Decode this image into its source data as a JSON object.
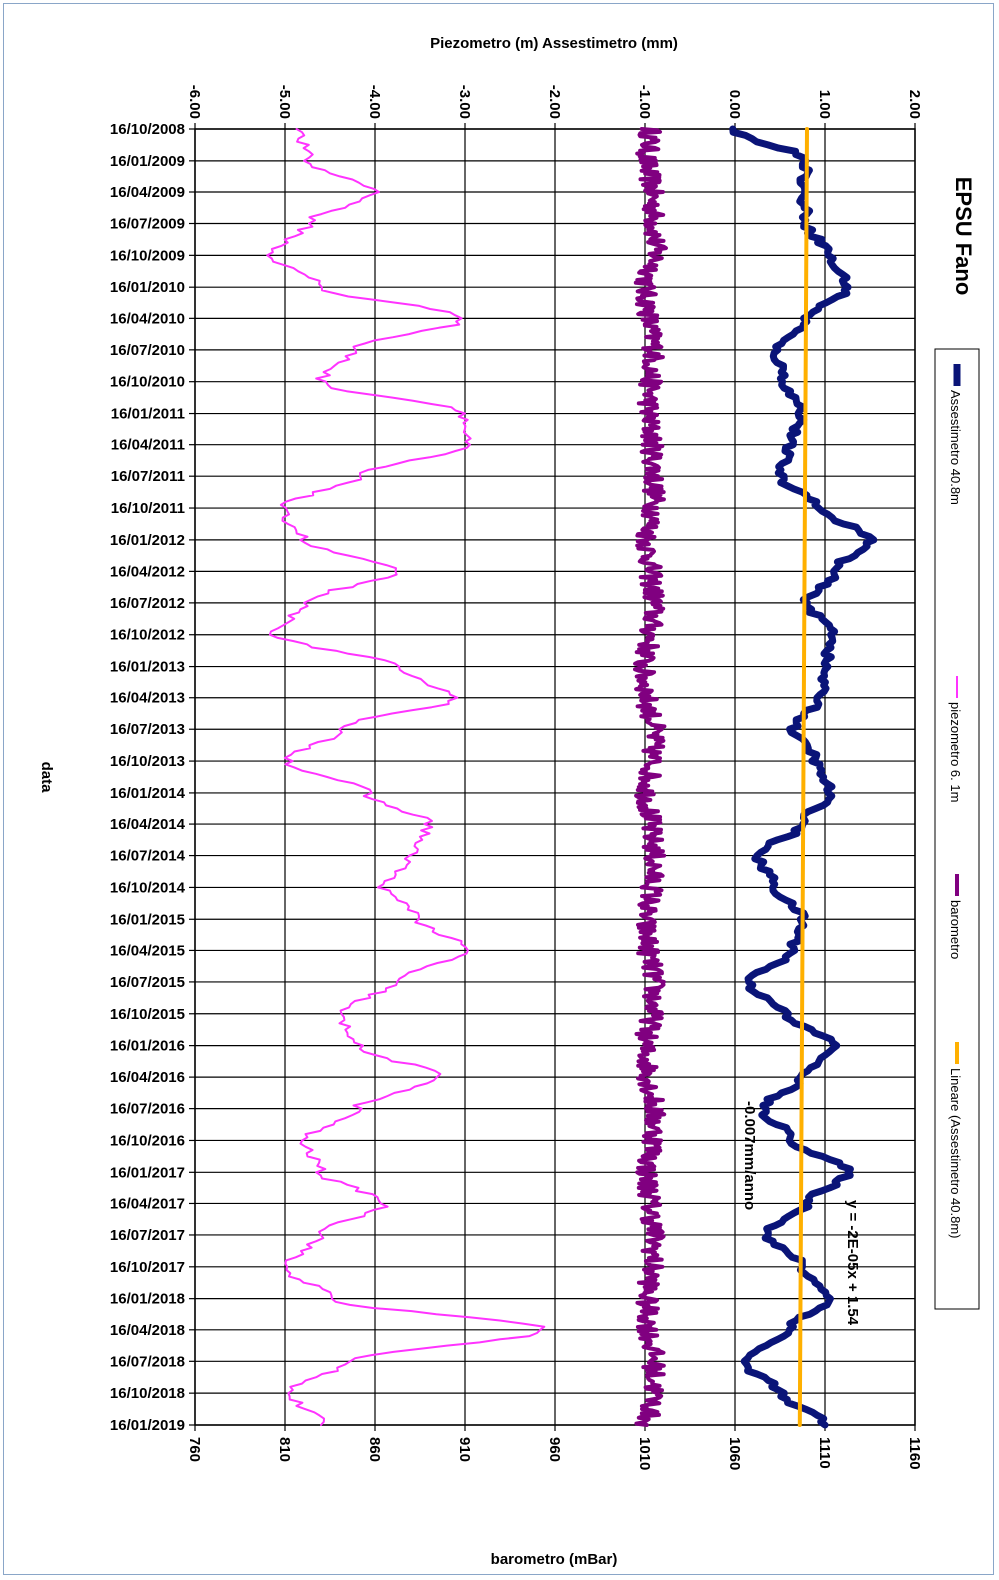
{
  "chart_data": {
    "type": "line",
    "title": "EPSU Fano",
    "orientation": "rotated-90-clockwise",
    "xlabel": "data",
    "ylabel_top": "Piezometro (m) Assestimetro (mm)",
    "ylabel_bottom": "barometro (mBar)",
    "date_ticks": [
      "16/10/2008",
      "16/01/2009",
      "16/04/2009",
      "16/07/2009",
      "16/10/2009",
      "16/01/2010",
      "16/04/2010",
      "16/07/2010",
      "16/10/2010",
      "16/01/2011",
      "16/04/2011",
      "16/07/2011",
      "16/10/2011",
      "16/01/2012",
      "16/04/2012",
      "16/07/2012",
      "16/10/2012",
      "16/01/2013",
      "16/04/2013",
      "16/07/2013",
      "16/10/2013",
      "16/01/2014",
      "16/04/2014",
      "16/07/2014",
      "16/10/2014",
      "16/01/2015",
      "16/04/2015",
      "16/07/2015",
      "16/10/2015",
      "16/01/2016",
      "16/04/2016",
      "16/07/2016",
      "16/10/2016",
      "16/01/2017",
      "16/04/2017",
      "16/07/2017",
      "16/10/2017",
      "16/01/2018",
      "16/04/2018",
      "16/07/2018",
      "16/10/2018",
      "16/01/2019"
    ],
    "top_axis": {
      "ticks": [
        "-6.00",
        "-5.00",
        "-4.00",
        "-3.00",
        "-2.00",
        "-1.00",
        "0.00",
        "1.00",
        "2.00"
      ],
      "range": [
        -6,
        2
      ]
    },
    "bottom_axis": {
      "ticks": [
        "760",
        "810",
        "860",
        "910",
        "960",
        "1010",
        "1060",
        "1110",
        "1160"
      ],
      "range": [
        760,
        1160
      ]
    },
    "grid": true,
    "legend_position": "right",
    "series": [
      {
        "name": "Assestimetro 40.8m",
        "axis": "top",
        "color": "#0a1478",
        "width": 7,
        "points": [
          [
            "16/10/2008",
            0.0
          ],
          [
            "16/01/2009",
            0.8
          ],
          [
            "16/04/2009",
            0.75
          ],
          [
            "16/07/2009",
            0.8
          ],
          [
            "16/10/2009",
            1.05
          ],
          [
            "16/01/2010",
            1.25
          ],
          [
            "16/04/2010",
            0.8
          ],
          [
            "16/07/2010",
            0.45
          ],
          [
            "16/10/2010",
            0.55
          ],
          [
            "16/01/2011",
            0.75
          ],
          [
            "16/04/2011",
            0.6
          ],
          [
            "16/07/2011",
            0.5
          ],
          [
            "16/10/2011",
            0.95
          ],
          [
            "16/01/2012",
            1.5
          ],
          [
            "16/04/2012",
            1.1
          ],
          [
            "16/07/2012",
            0.8
          ],
          [
            "16/10/2012",
            1.1
          ],
          [
            "16/01/2013",
            1.0
          ],
          [
            "16/04/2013",
            0.95
          ],
          [
            "16/07/2013",
            0.65
          ],
          [
            "16/10/2013",
            0.9
          ],
          [
            "16/01/2014",
            1.05
          ],
          [
            "16/04/2014",
            0.75
          ],
          [
            "16/07/2014",
            0.25
          ],
          [
            "16/10/2014",
            0.45
          ],
          [
            "16/01/2015",
            0.75
          ],
          [
            "16/04/2015",
            0.65
          ],
          [
            "16/07/2015",
            0.15
          ],
          [
            "16/10/2015",
            0.55
          ],
          [
            "16/01/2016",
            1.1
          ],
          [
            "16/04/2016",
            0.75
          ],
          [
            "16/07/2016",
            0.3
          ],
          [
            "16/10/2016",
            0.65
          ],
          [
            "16/01/2017",
            1.25
          ],
          [
            "16/04/2017",
            0.8
          ],
          [
            "16/07/2017",
            0.35
          ],
          [
            "16/10/2017",
            0.75
          ],
          [
            "16/01/2018",
            1.05
          ],
          [
            "16/04/2018",
            0.6
          ],
          [
            "16/07/2018",
            0.1
          ],
          [
            "16/10/2018",
            0.5
          ],
          [
            "16/01/2019",
            1.0
          ]
        ]
      },
      {
        "name": "piezometro 6. 1m",
        "axis": "top",
        "color": "#ff33ff",
        "width": 2,
        "points": [
          [
            "16/10/2008",
            -4.85
          ],
          [
            "16/01/2009",
            -4.75
          ],
          [
            "16/04/2009",
            -4.0
          ],
          [
            "16/07/2009",
            -4.75
          ],
          [
            "16/10/2009",
            -5.15
          ],
          [
            "16/01/2010",
            -4.6
          ],
          [
            "16/04/2010",
            -3.0
          ],
          [
            "16/07/2010",
            -4.25
          ],
          [
            "16/10/2010",
            -4.6
          ],
          [
            "16/01/2011",
            -3.0
          ],
          [
            "16/04/2011",
            -3.0
          ],
          [
            "16/07/2011",
            -4.2
          ],
          [
            "16/10/2011",
            -5.05
          ],
          [
            "16/01/2012",
            -4.8
          ],
          [
            "16/04/2012",
            -3.8
          ],
          [
            "16/07/2012",
            -4.8
          ],
          [
            "16/10/2012",
            -5.1
          ],
          [
            "16/01/2013",
            -3.8
          ],
          [
            "16/04/2013",
            -3.1
          ],
          [
            "16/07/2013",
            -4.4
          ],
          [
            "16/10/2013",
            -4.95
          ],
          [
            "16/01/2014",
            -4.1
          ],
          [
            "16/04/2014",
            -3.4
          ],
          [
            "16/07/2014",
            -3.6
          ],
          [
            "16/10/2014",
            -3.9
          ],
          [
            "16/01/2015",
            -3.5
          ],
          [
            "16/04/2015",
            -3.0
          ],
          [
            "16/07/2015",
            -3.8
          ],
          [
            "16/10/2015",
            -4.4
          ],
          [
            "16/01/2016",
            -4.2
          ],
          [
            "16/04/2016",
            -3.3
          ],
          [
            "16/07/2016",
            -4.2
          ],
          [
            "16/10/2016",
            -4.8
          ],
          [
            "16/01/2017",
            -4.6
          ],
          [
            "16/04/2017",
            -3.9
          ],
          [
            "16/07/2017",
            -4.6
          ],
          [
            "16/10/2017",
            -5.0
          ],
          [
            "16/01/2018",
            -4.5
          ],
          [
            "16/04/2018",
            -2.1
          ],
          [
            "16/07/2018",
            -4.3
          ],
          [
            "16/10/2018",
            -4.95
          ],
          [
            "16/01/2019",
            -4.6
          ]
        ]
      },
      {
        "name": "barometro",
        "axis": "bottom",
        "color": "#800080",
        "width": 4,
        "points": [
          [
            "16/10/2008",
            1013
          ],
          [
            "16/01/2009",
            1011
          ],
          [
            "16/04/2009",
            1014
          ],
          [
            "16/07/2009",
            1015
          ],
          [
            "16/10/2009",
            1016
          ],
          [
            "16/01/2010",
            1010
          ],
          [
            "16/04/2010",
            1012
          ],
          [
            "16/07/2010",
            1015
          ],
          [
            "16/10/2010",
            1013
          ],
          [
            "16/01/2011",
            1012
          ],
          [
            "16/04/2011",
            1014
          ],
          [
            "16/07/2011",
            1015
          ],
          [
            "16/10/2011",
            1015
          ],
          [
            "16/01/2012",
            1011
          ],
          [
            "16/04/2012",
            1013
          ],
          [
            "16/07/2012",
            1015
          ],
          [
            "16/10/2012",
            1013
          ],
          [
            "16/01/2013",
            1009
          ],
          [
            "16/04/2013",
            1011
          ],
          [
            "16/07/2013",
            1015
          ],
          [
            "16/10/2013",
            1014
          ],
          [
            "16/01/2014",
            1011
          ],
          [
            "16/04/2014",
            1013
          ],
          [
            "16/07/2014",
            1015
          ],
          [
            "16/10/2014",
            1014
          ],
          [
            "16/01/2015",
            1010
          ],
          [
            "16/04/2015",
            1012
          ],
          [
            "16/07/2015",
            1015
          ],
          [
            "16/10/2015",
            1014
          ],
          [
            "16/01/2016",
            1010
          ],
          [
            "16/04/2016",
            1012
          ],
          [
            "16/07/2016",
            1015
          ],
          [
            "16/10/2016",
            1015
          ],
          [
            "16/01/2017",
            1011
          ],
          [
            "16/04/2017",
            1013
          ],
          [
            "16/07/2017",
            1015
          ],
          [
            "16/10/2017",
            1014
          ],
          [
            "16/01/2018",
            1011
          ],
          [
            "16/04/2018",
            1012
          ],
          [
            "16/07/2018",
            1015
          ],
          [
            "16/10/2018",
            1015
          ],
          [
            "16/01/2019",
            1011
          ]
        ]
      },
      {
        "name": "Lineare (Assestimetro 40.8m)",
        "axis": "top",
        "color": "#ffb000",
        "width": 4,
        "points": [
          [
            "16/10/2008",
            0.8
          ],
          [
            "16/01/2019",
            0.72
          ]
        ]
      }
    ],
    "annotations": {
      "rate": "-0.007mm/anno",
      "equation": "y = -2E-05x + 1.54"
    }
  }
}
